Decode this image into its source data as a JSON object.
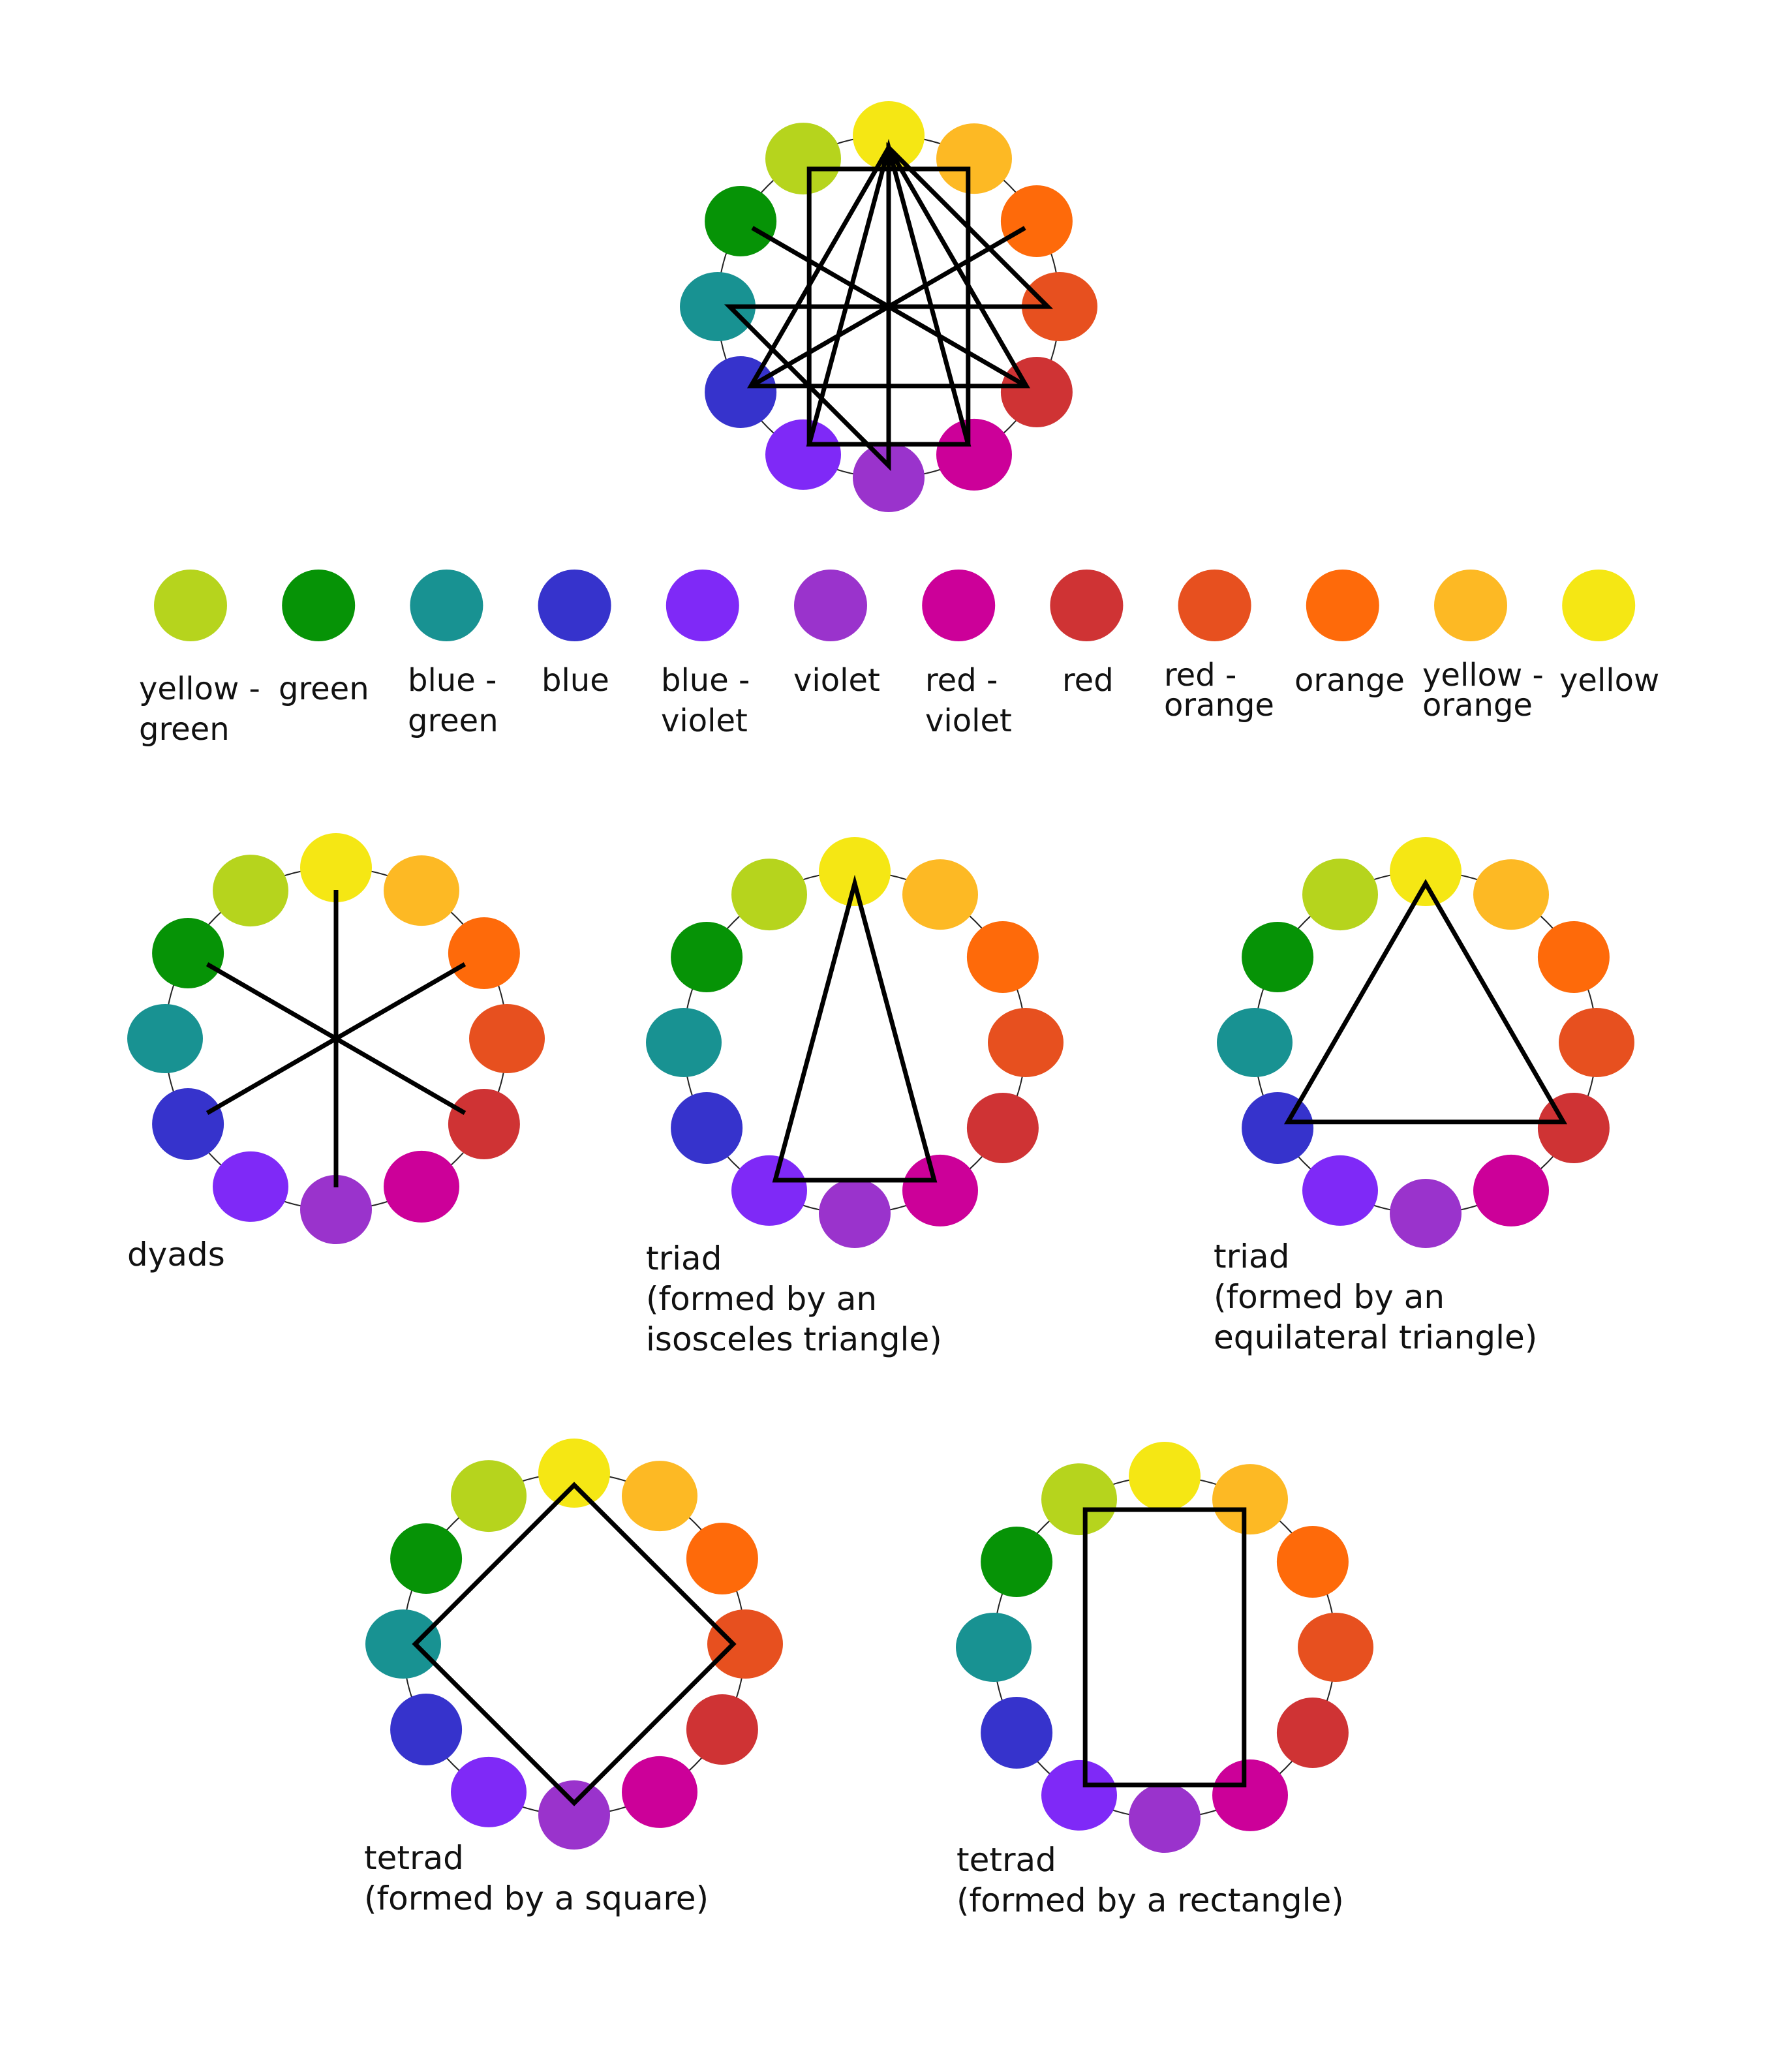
{
  "wheel_order": [
    "yellow",
    "yellow-orange",
    "orange",
    "red-orange",
    "red",
    "red-violet",
    "violet",
    "blue-violet",
    "blue",
    "blue-green",
    "green",
    "yellow-green"
  ],
  "colors": {
    "yellow": "#f5e714",
    "yellow-orange": "#fdb924",
    "orange": "#fe6a0a",
    "red-orange": "#e7501f",
    "red": "#cf3334",
    "red-violet": "#cc0099",
    "violet": "#9a33cc",
    "blue-violet": "#7f29f7",
    "blue": "#3633cc",
    "blue-green": "#189292",
    "green": "#069306",
    "yellow-green": "#b6d41d"
  },
  "legend": [
    {
      "key": "yellow-green",
      "label": "yellow -\ngreen"
    },
    {
      "key": "green",
      "label": "green"
    },
    {
      "key": "blue-green",
      "label": "blue -\ngreen"
    },
    {
      "key": "blue",
      "label": "blue"
    },
    {
      "key": "blue-violet",
      "label": "blue -\nviolet"
    },
    {
      "key": "violet",
      "label": "violet"
    },
    {
      "key": "red-violet",
      "label": "red -\nviolet"
    },
    {
      "key": "red",
      "label": "red"
    },
    {
      "key": "red-orange",
      "label": "red -\norange"
    },
    {
      "key": "orange",
      "label": "orange"
    },
    {
      "key": "yellow-orange",
      "label": "yellow -\norange"
    },
    {
      "key": "yellow",
      "label": "yellow"
    }
  ],
  "wheels": [
    {
      "id": "overview",
      "caption": "",
      "shapes": [
        {
          "kind": "dyad",
          "hues": [
            "green",
            "red"
          ]
        },
        {
          "kind": "dyad",
          "hues": [
            "orange",
            "blue"
          ]
        },
        {
          "kind": "triad",
          "hues": [
            "yellow",
            "blue",
            "red"
          ]
        },
        {
          "kind": "triad",
          "hues": [
            "yellow",
            "blue-violet",
            "red-violet"
          ]
        },
        {
          "kind": "tetrad",
          "hues": [
            "yellow",
            "violet",
            "blue-green",
            "red-orange"
          ]
        },
        {
          "kind": "tetrad",
          "hues": [
            "yellow-green",
            "yellow-orange",
            "red-violet",
            "blue-violet"
          ]
        },
        {
          "kind": "line",
          "hues": [
            "yellow",
            "violet"
          ]
        }
      ]
    },
    {
      "id": "dyads",
      "caption": "dyads",
      "shapes": [
        {
          "kind": "dyad",
          "hues": [
            "yellow",
            "violet"
          ]
        },
        {
          "kind": "dyad",
          "hues": [
            "green",
            "red"
          ]
        },
        {
          "kind": "dyad",
          "hues": [
            "orange",
            "blue"
          ]
        }
      ]
    },
    {
      "id": "triad-isosceles",
      "caption": "triad\n(formed by an\nisosceles triangle)",
      "shapes": [
        {
          "kind": "triad",
          "hues": [
            "yellow",
            "blue-violet",
            "red-violet"
          ]
        }
      ]
    },
    {
      "id": "triad-equilateral",
      "caption": "triad\n(formed by an\nequilateral triangle)",
      "shapes": [
        {
          "kind": "triad",
          "hues": [
            "yellow",
            "blue",
            "red"
          ]
        }
      ]
    },
    {
      "id": "tetrad-square",
      "caption": "tetrad\n(formed by a square)",
      "shapes": [
        {
          "kind": "tetrad",
          "hues": [
            "yellow",
            "red-orange",
            "violet",
            "blue-green"
          ]
        }
      ]
    },
    {
      "id": "tetrad-rectangle",
      "caption": "tetrad\n(formed by a rectangle)",
      "shapes": [
        {
          "kind": "tetrad",
          "hues": [
            "yellow-green",
            "yellow-orange",
            "red-violet",
            "blue-violet"
          ]
        }
      ]
    }
  ]
}
